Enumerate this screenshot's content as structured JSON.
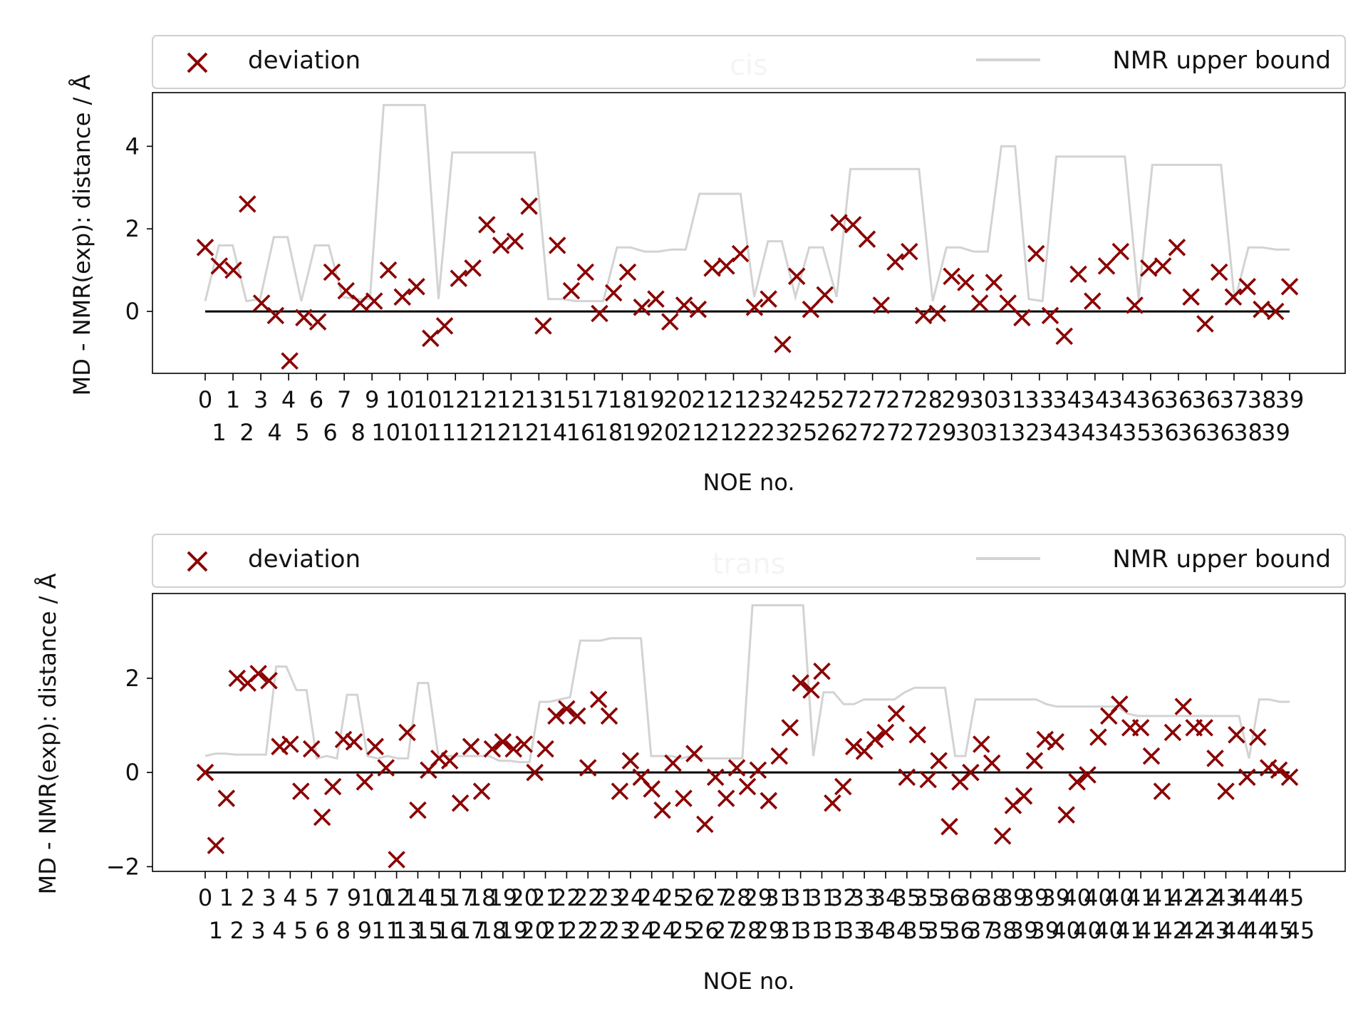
{
  "chart_data": [
    {
      "type": "scatter",
      "title": "cis",
      "xlabel": "NOE no.",
      "ylabel": "MD - NMR(exp): distance / Å",
      "ylim": [
        -1.5,
        5.3
      ],
      "yticks": [
        0,
        2,
        4
      ],
      "grid": false,
      "legend": {
        "placement": "top",
        "items": [
          "deviation",
          "NMR upper bound"
        ]
      },
      "colors": {
        "deviation": "#8b0000",
        "bound": "#d3d3d3",
        "zero": "#000000"
      },
      "tick_labels_top": [
        "0",
        "1",
        "3",
        "4",
        "6",
        "7",
        "9",
        "10",
        "10",
        "12",
        "12",
        "12",
        "13",
        "15",
        "17",
        "18",
        "19",
        "20",
        "21",
        "21",
        "23",
        "24",
        "25",
        "27",
        "27",
        "27",
        "28",
        "29",
        "30",
        "31",
        "33",
        "34",
        "34",
        "34",
        "36",
        "36",
        "36",
        "37",
        "38",
        "39"
      ],
      "tick_labels_bottom": [
        "1",
        "2",
        "4",
        "5",
        "6",
        "8",
        "10",
        "10",
        "11",
        "12",
        "12",
        "12",
        "14",
        "16",
        "18",
        "19",
        "20",
        "21",
        "21",
        "22",
        "23",
        "25",
        "26",
        "27",
        "27",
        "27",
        "29",
        "30",
        "31",
        "32",
        "34",
        "34",
        "34",
        "35",
        "36",
        "36",
        "36",
        "38",
        "39"
      ],
      "series": [
        {
          "name": "deviation",
          "y": [
            1.55,
            1.1,
            1.0,
            2.6,
            0.2,
            -0.1,
            -1.2,
            -0.15,
            -0.25,
            0.95,
            0.5,
            0.2,
            0.25,
            1.0,
            0.35,
            0.6,
            -0.65,
            -0.35,
            0.8,
            1.05,
            2.1,
            1.6,
            1.7,
            2.55,
            -0.35,
            1.6,
            0.5,
            0.95,
            -0.05,
            0.45,
            0.95,
            0.1,
            0.3,
            -0.25,
            0.15,
            0.05,
            1.05,
            1.1,
            1.4,
            0.1,
            0.3,
            -0.8,
            0.85,
            0.05,
            0.4,
            2.15,
            2.1,
            1.75,
            0.15,
            1.2,
            1.45,
            -0.1,
            -0.05,
            0.85,
            0.7,
            0.2,
            0.7,
            0.2,
            -0.15,
            1.4,
            -0.1,
            -0.6,
            0.9,
            0.25,
            1.1,
            1.45,
            0.15,
            1.05,
            1.1,
            1.55,
            0.35,
            -0.3,
            0.95,
            0.35,
            0.6,
            0.05,
            0.0,
            0.6
          ]
        },
        {
          "name": "NMR upper bound",
          "y": [
            0.25,
            1.6,
            1.6,
            0.25,
            0.3,
            1.8,
            1.8,
            0.25,
            1.6,
            1.6,
            0.35,
            0.3,
            0.3,
            5.0,
            5.0,
            5.0,
            5.0,
            0.3,
            3.85,
            3.85,
            3.85,
            3.85,
            3.85,
            3.85,
            3.85,
            0.3,
            0.3,
            0.25,
            0.25,
            0.25,
            1.55,
            1.55,
            1.45,
            1.45,
            1.5,
            1.5,
            2.85,
            2.85,
            2.85,
            2.85,
            0.35,
            1.7,
            1.7,
            0.35,
            1.55,
            1.55,
            0.35,
            3.45,
            3.45,
            3.45,
            3.45,
            3.45,
            3.45,
            0.25,
            1.55,
            1.55,
            1.45,
            1.45,
            4.0,
            4.0,
            0.3,
            0.25,
            3.75,
            3.75,
            3.75,
            3.75,
            3.75,
            3.75,
            0.3,
            3.55,
            3.55,
            3.55,
            3.55,
            3.55,
            3.55,
            0.25,
            1.55,
            1.55,
            1.5,
            1.5
          ]
        }
      ]
    },
    {
      "type": "scatter",
      "title": "trans",
      "xlabel": "NOE no.",
      "ylabel": "MD - NMR(exp): distance / Å",
      "ylim": [
        -2.1,
        3.8
      ],
      "yticks": [
        -2,
        0,
        2
      ],
      "grid": false,
      "legend": {
        "placement": "top",
        "items": [
          "deviation",
          "NMR upper bound"
        ]
      },
      "colors": {
        "deviation": "#8b0000",
        "bound": "#d3d3d3",
        "zero": "#000000"
      },
      "tick_labels_top": [
        "0",
        "1",
        "2",
        "3",
        "4",
        "5",
        "7",
        "9",
        "10",
        "12",
        "14",
        "15",
        "17",
        "18",
        "19",
        "20",
        "21",
        "22",
        "22",
        "23",
        "24",
        "24",
        "25",
        "26",
        "27",
        "28",
        "29",
        "31",
        "31",
        "31",
        "32",
        "33",
        "34",
        "35",
        "35",
        "36",
        "36",
        "38",
        "39",
        "39",
        "39",
        "40",
        "40",
        "40",
        "41",
        "41",
        "42",
        "42",
        "43",
        "44",
        "44",
        "45"
      ],
      "tick_labels_bottom": [
        "1",
        "2",
        "3",
        "4",
        "5",
        "6",
        "8",
        "9",
        "11",
        "13",
        "15",
        "16",
        "17",
        "18",
        "19",
        "20",
        "21",
        "22",
        "22",
        "23",
        "24",
        "24",
        "25",
        "26",
        "27",
        "28",
        "29",
        "31",
        "31",
        "31",
        "33",
        "34",
        "34",
        "35",
        "35",
        "36",
        "37",
        "38",
        "39",
        "39",
        "40",
        "40",
        "40",
        "41",
        "41",
        "42",
        "42",
        "43",
        "44",
        "44",
        "45",
        "45"
      ],
      "series": [
        {
          "name": "deviation",
          "y": [
            0.0,
            -1.55,
            -0.55,
            2.0,
            1.9,
            2.1,
            1.95,
            0.55,
            0.6,
            -0.4,
            0.5,
            -0.95,
            -0.3,
            0.7,
            0.65,
            -0.2,
            0.55,
            0.1,
            -1.85,
            0.85,
            -0.8,
            0.05,
            0.3,
            0.25,
            -0.65,
            0.55,
            -0.4,
            0.5,
            0.65,
            0.5,
            0.6,
            0.0,
            0.5,
            1.2,
            1.35,
            1.2,
            0.1,
            1.55,
            1.2,
            -0.4,
            0.25,
            -0.1,
            -0.35,
            -0.8,
            0.2,
            -0.55,
            0.4,
            -1.1,
            -0.1,
            -0.55,
            0.1,
            -0.3,
            0.05,
            -0.6,
            0.35,
            0.95,
            1.9,
            1.75,
            2.15,
            -0.65,
            -0.3,
            0.55,
            0.45,
            0.7,
            0.85,
            1.25,
            -0.1,
            0.8,
            -0.15,
            0.25,
            -1.15,
            -0.2,
            0.0,
            0.6,
            0.2,
            -1.35,
            -0.7,
            -0.5,
            0.25,
            0.7,
            0.65,
            -0.9,
            -0.2,
            -0.05,
            0.75,
            1.2,
            1.45,
            0.95,
            0.95,
            0.35,
            -0.4,
            0.85,
            1.4,
            0.95,
            0.95,
            0.3,
            -0.4,
            0.8,
            -0.1,
            0.75,
            0.1,
            0.05,
            -0.1
          ]
        },
        {
          "name": "NMR upper bound",
          "y": [
            0.35,
            0.4,
            0.4,
            0.38,
            0.38,
            0.38,
            0.38,
            2.25,
            2.25,
            1.75,
            1.75,
            0.3,
            0.35,
            0.3,
            1.65,
            1.65,
            0.35,
            0.3,
            0.35,
            0.3,
            0.3,
            1.9,
            1.9,
            0.35,
            0.35,
            0.35,
            0.35,
            0.35,
            0.35,
            0.25,
            0.25,
            0.22,
            0.22,
            1.5,
            1.5,
            1.55,
            1.6,
            2.8,
            2.8,
            2.8,
            2.85,
            2.85,
            2.85,
            2.85,
            0.35,
            0.35,
            0.35,
            0.3,
            0.35,
            0.3,
            0.3,
            0.3,
            0.3,
            0.3,
            3.55,
            3.55,
            3.55,
            3.55,
            3.55,
            3.55,
            0.35,
            1.7,
            1.7,
            1.45,
            1.45,
            1.55,
            1.55,
            1.55,
            1.55,
            1.7,
            1.8,
            1.8,
            1.8,
            1.8,
            0.35,
            0.35,
            1.55,
            1.55,
            1.55,
            1.55,
            1.55,
            1.55,
            1.55,
            1.45,
            1.4,
            1.4,
            1.4,
            1.4,
            1.4,
            1.4,
            1.4,
            1.25,
            1.2,
            1.2,
            1.2,
            1.2,
            1.2,
            1.2,
            1.2,
            1.2,
            1.2,
            1.2,
            1.2,
            0.3,
            1.55,
            1.55,
            1.5,
            1.5
          ]
        }
      ]
    }
  ]
}
